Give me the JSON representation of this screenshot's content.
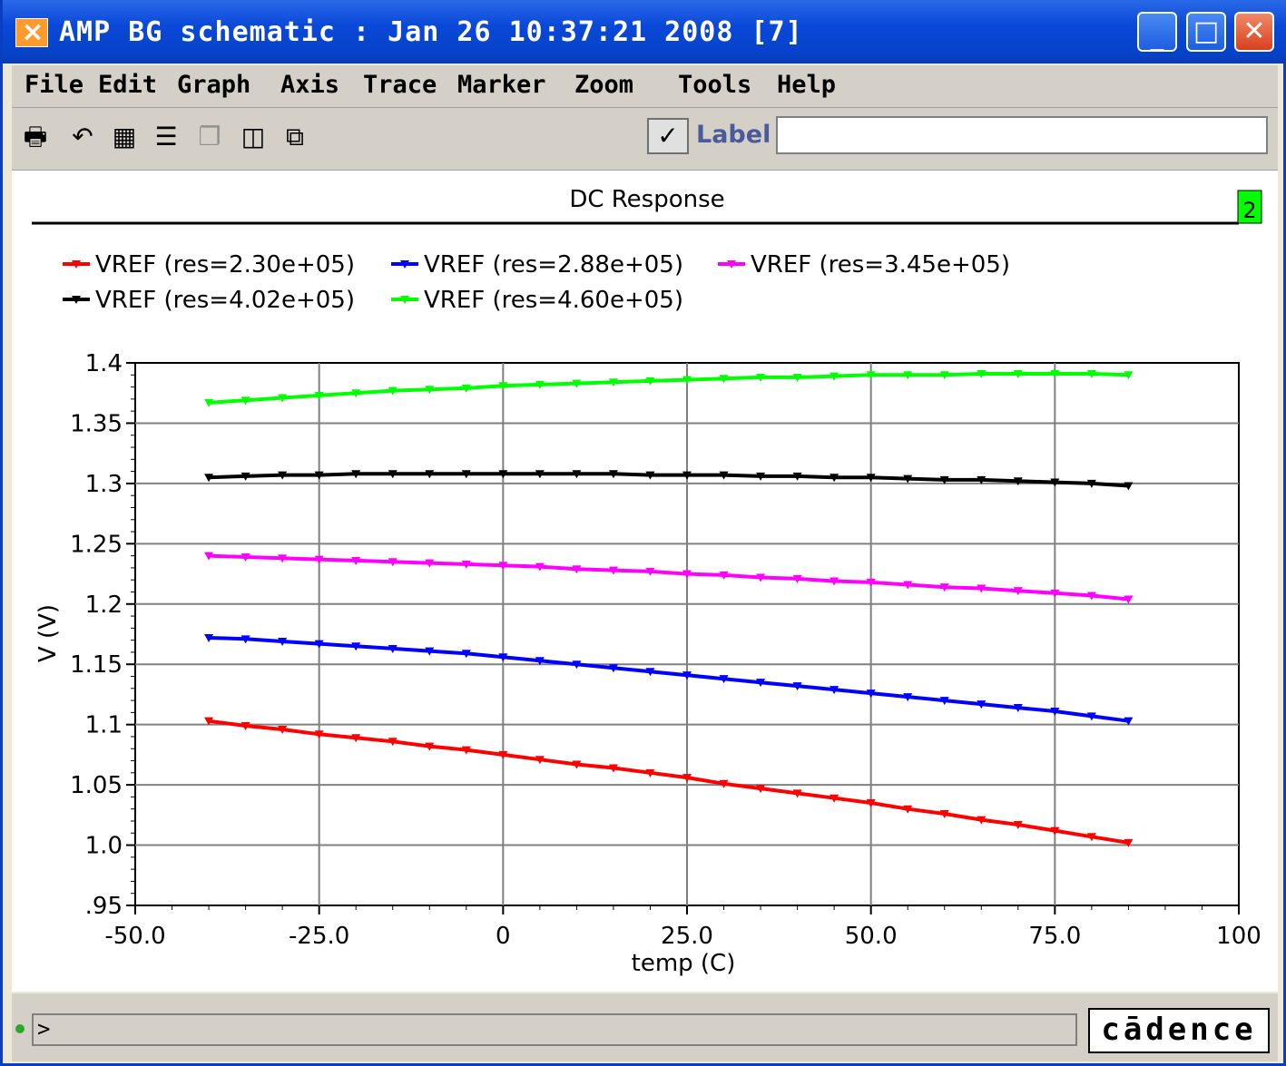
{
  "window": {
    "title": "AMP BG schematic : Jan 26 10:37:21 2008 [7]",
    "icon": "app-icon"
  },
  "menu": [
    "File",
    "Edit",
    "Graph",
    "Axis",
    "Trace",
    "Marker",
    "Zoom",
    "Tools",
    "Help"
  ],
  "toolbar": {
    "icons": [
      "printer-icon",
      "undo-icon",
      "grid-icon",
      "strip-icon",
      "overlay-icon",
      "split-icon",
      "new-window-icon"
    ],
    "label_checkbox": "Label",
    "label_value": ""
  },
  "status": {
    "prompt": ">",
    "logo": "cādence"
  },
  "colors": {
    "red": "#ff0000",
    "blue": "#0000ff",
    "magenta": "#ff00ff",
    "black": "#000000",
    "green": "#00ff00"
  },
  "chart_data": {
    "type": "line",
    "title": "DC Response",
    "subwindow_badge": "2",
    "xlabel": "temp (C)",
    "ylabel": "V (V)",
    "xlim": [
      -50,
      100
    ],
    "ylim": [
      0.95,
      1.4
    ],
    "xticks": [
      "-50.0",
      "-25.0",
      "0",
      "25.0",
      "50.0",
      "75.0",
      "100"
    ],
    "yticks": [
      ".95",
      "1.0",
      "1.05",
      "1.1",
      "1.15",
      "1.2",
      "1.25",
      "1.3",
      "1.35",
      "1.4"
    ],
    "grid": true,
    "legend_position": "top-left",
    "series": [
      {
        "name": "VREF (res=2.30e+05)",
        "color": "#ff0000",
        "x": [
          -40,
          -35,
          -30,
          -25,
          -20,
          -15,
          -10,
          -5,
          0,
          5,
          10,
          15,
          20,
          25,
          30,
          35,
          40,
          45,
          50,
          55,
          60,
          65,
          70,
          75,
          80,
          85
        ],
        "y": [
          1.103,
          1.099,
          1.096,
          1.092,
          1.089,
          1.086,
          1.082,
          1.079,
          1.075,
          1.071,
          1.067,
          1.064,
          1.06,
          1.056,
          1.051,
          1.047,
          1.043,
          1.039,
          1.035,
          1.03,
          1.026,
          1.021,
          1.017,
          1.012,
          1.007,
          1.002
        ]
      },
      {
        "name": "VREF (res=2.88e+05)",
        "color": "#0000ff",
        "x": [
          -40,
          -35,
          -30,
          -25,
          -20,
          -15,
          -10,
          -5,
          0,
          5,
          10,
          15,
          20,
          25,
          30,
          35,
          40,
          45,
          50,
          55,
          60,
          65,
          70,
          75,
          80,
          85
        ],
        "y": [
          1.172,
          1.171,
          1.169,
          1.167,
          1.165,
          1.163,
          1.161,
          1.159,
          1.156,
          1.153,
          1.15,
          1.147,
          1.144,
          1.141,
          1.138,
          1.135,
          1.132,
          1.129,
          1.126,
          1.123,
          1.12,
          1.117,
          1.114,
          1.111,
          1.107,
          1.103
        ]
      },
      {
        "name": "VREF (res=3.45e+05)",
        "color": "#ff00ff",
        "x": [
          -40,
          -35,
          -30,
          -25,
          -20,
          -15,
          -10,
          -5,
          0,
          5,
          10,
          15,
          20,
          25,
          30,
          35,
          40,
          45,
          50,
          55,
          60,
          65,
          70,
          75,
          80,
          85
        ],
        "y": [
          1.24,
          1.239,
          1.238,
          1.237,
          1.236,
          1.235,
          1.234,
          1.233,
          1.232,
          1.231,
          1.229,
          1.228,
          1.227,
          1.225,
          1.224,
          1.222,
          1.221,
          1.219,
          1.218,
          1.216,
          1.214,
          1.213,
          1.211,
          1.209,
          1.207,
          1.204
        ]
      },
      {
        "name": "VREF (res=4.02e+05)",
        "color": "#000000",
        "x": [
          -40,
          -35,
          -30,
          -25,
          -20,
          -15,
          -10,
          -5,
          0,
          5,
          10,
          15,
          20,
          25,
          30,
          35,
          40,
          45,
          50,
          55,
          60,
          65,
          70,
          75,
          80,
          85
        ],
        "y": [
          1.305,
          1.306,
          1.307,
          1.307,
          1.308,
          1.308,
          1.308,
          1.308,
          1.308,
          1.308,
          1.308,
          1.308,
          1.307,
          1.307,
          1.307,
          1.306,
          1.306,
          1.305,
          1.305,
          1.304,
          1.303,
          1.303,
          1.302,
          1.301,
          1.3,
          1.298
        ]
      },
      {
        "name": "VREF (res=4.60e+05)",
        "color": "#00ff00",
        "x": [
          -40,
          -35,
          -30,
          -25,
          -20,
          -15,
          -10,
          -5,
          0,
          5,
          10,
          15,
          20,
          25,
          30,
          35,
          40,
          45,
          50,
          55,
          60,
          65,
          70,
          75,
          80,
          85
        ],
        "y": [
          1.367,
          1.369,
          1.371,
          1.373,
          1.375,
          1.377,
          1.378,
          1.379,
          1.381,
          1.382,
          1.383,
          1.384,
          1.385,
          1.386,
          1.387,
          1.388,
          1.388,
          1.389,
          1.39,
          1.39,
          1.39,
          1.391,
          1.391,
          1.391,
          1.391,
          1.39
        ]
      }
    ]
  }
}
